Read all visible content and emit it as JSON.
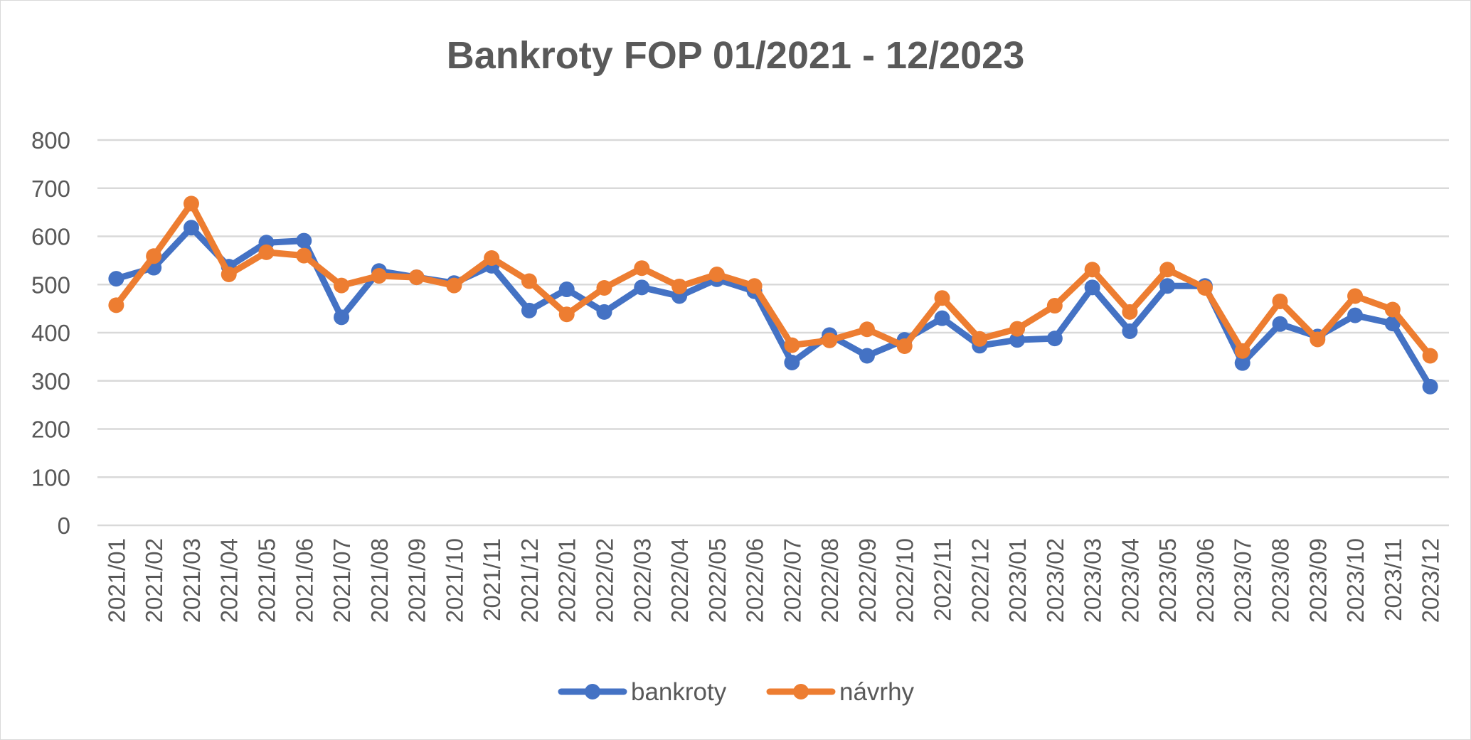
{
  "chart_data": {
    "type": "line",
    "title": "Bankroty FOP 01/2021 - 12/2023",
    "xlabel": "",
    "ylabel": "",
    "ylim": [
      0,
      800
    ],
    "yticks": [
      0,
      100,
      200,
      300,
      400,
      500,
      600,
      700,
      800
    ],
    "grid": true,
    "legend_position": "bottom",
    "categories": [
      "2021/01",
      "2021/02",
      "2021/03",
      "2021/04",
      "2021/05",
      "2021/06",
      "2021/07",
      "2021/08",
      "2021/09",
      "2021/10",
      "2021/11",
      "2021/12",
      "2022/01",
      "2022/02",
      "2022/03",
      "2022/04",
      "2022/05",
      "2022/06",
      "2022/07",
      "2022/08",
      "2022/09",
      "2022/10",
      "2022/11",
      "2022/12",
      "2023/01",
      "2023/02",
      "2023/03",
      "2023/04",
      "2023/05",
      "2023/06",
      "2023/07",
      "2023/08",
      "2023/09",
      "2023/10",
      "2023/11",
      "2023/12"
    ],
    "series": [
      {
        "name": "bankroty",
        "color": "#4472C4",
        "values": [
          512,
          535,
          618,
          537,
          587,
          591,
          432,
          528,
          515,
          503,
          539,
          446,
          490,
          443,
          494,
          476,
          511,
          486,
          338,
          395,
          352,
          385,
          430,
          373,
          385,
          388,
          494,
          403,
          497,
          497,
          337,
          418,
          392,
          436,
          419,
          288
        ]
      },
      {
        "name": "návrhy",
        "color": "#ED7D31",
        "values": [
          457,
          559,
          668,
          521,
          567,
          560,
          498,
          518,
          515,
          498,
          555,
          507,
          438,
          493,
          534,
          496,
          521,
          497,
          374,
          384,
          407,
          372,
          472,
          387,
          408,
          456,
          531,
          443,
          531,
          493,
          362,
          465,
          386,
          476,
          448,
          352
        ]
      }
    ]
  }
}
